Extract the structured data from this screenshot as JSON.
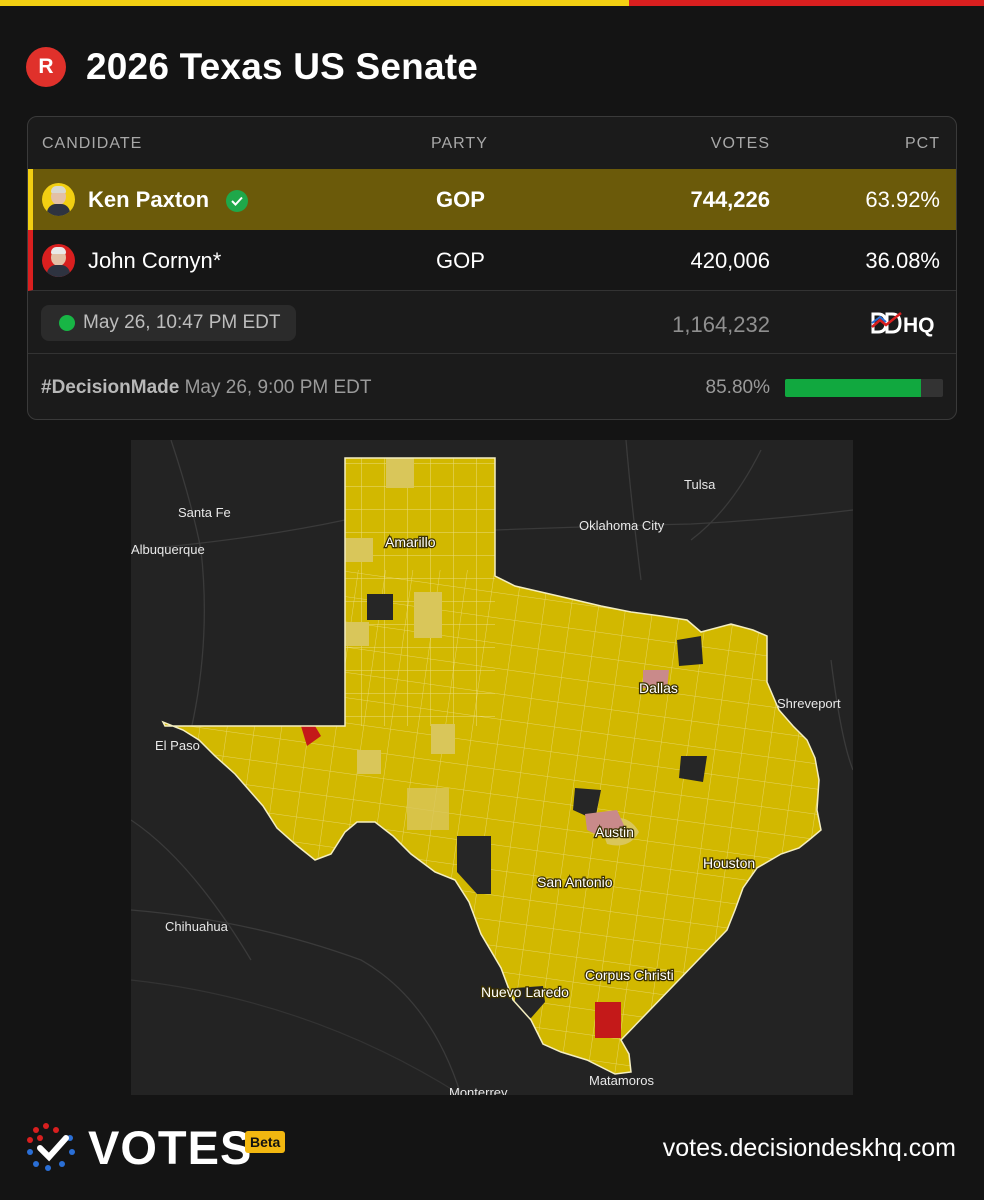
{
  "header": {
    "party_badge": "R",
    "title": "2026 Texas US Senate"
  },
  "table": {
    "columns": [
      "CANDIDATE",
      "PARTY",
      "VOTES",
      "PCT"
    ],
    "candidates": [
      {
        "name": "Ken Paxton",
        "party": "GOP",
        "votes": "744,226",
        "pct": "63.92%",
        "winner": true,
        "color": "#f2cf12"
      },
      {
        "name": "John Cornyn*",
        "party": "GOP",
        "votes": "420,006",
        "pct": "36.08%",
        "winner": false,
        "color": "#d91f1f"
      }
    ],
    "updated": "May 26, 10:47 PM EDT",
    "total_votes": "1,164,232",
    "source_logo": "DDHQ",
    "decision_tag": "#DecisionMade",
    "decision_time": "May 26, 9:00 PM EDT",
    "reporting": "85.80%",
    "reporting_fraction": 0.858
  },
  "map": {
    "labels": {
      "santa_fe": "Santa Fe",
      "albuquerque": "Albuquerque",
      "tulsa": "Tulsa",
      "oklahoma_city": "Oklahoma City",
      "amarillo": "Amarillo",
      "dallas": "Dallas",
      "shreveport": "Shreveport",
      "el_paso": "El Paso",
      "austin": "Austin",
      "houston": "Houston",
      "san_antonio": "San Antonio",
      "chihuahua": "Chihuahua",
      "corpus_christi": "Corpus Christi",
      "nuevo_laredo": "Nuevo Laredo",
      "matamoros": "Matamoros",
      "monterrey": "Monterrey"
    },
    "colors": {
      "paxton": "#d2b800",
      "paxton_light": "#d9c65a",
      "cornyn": "#c41919",
      "cornyn_light": "#c98a8a",
      "no_data": "#262626"
    }
  },
  "footer": {
    "brand": "VOTES",
    "badge": "Beta",
    "site": "votes.decisiondeskhq.com"
  }
}
